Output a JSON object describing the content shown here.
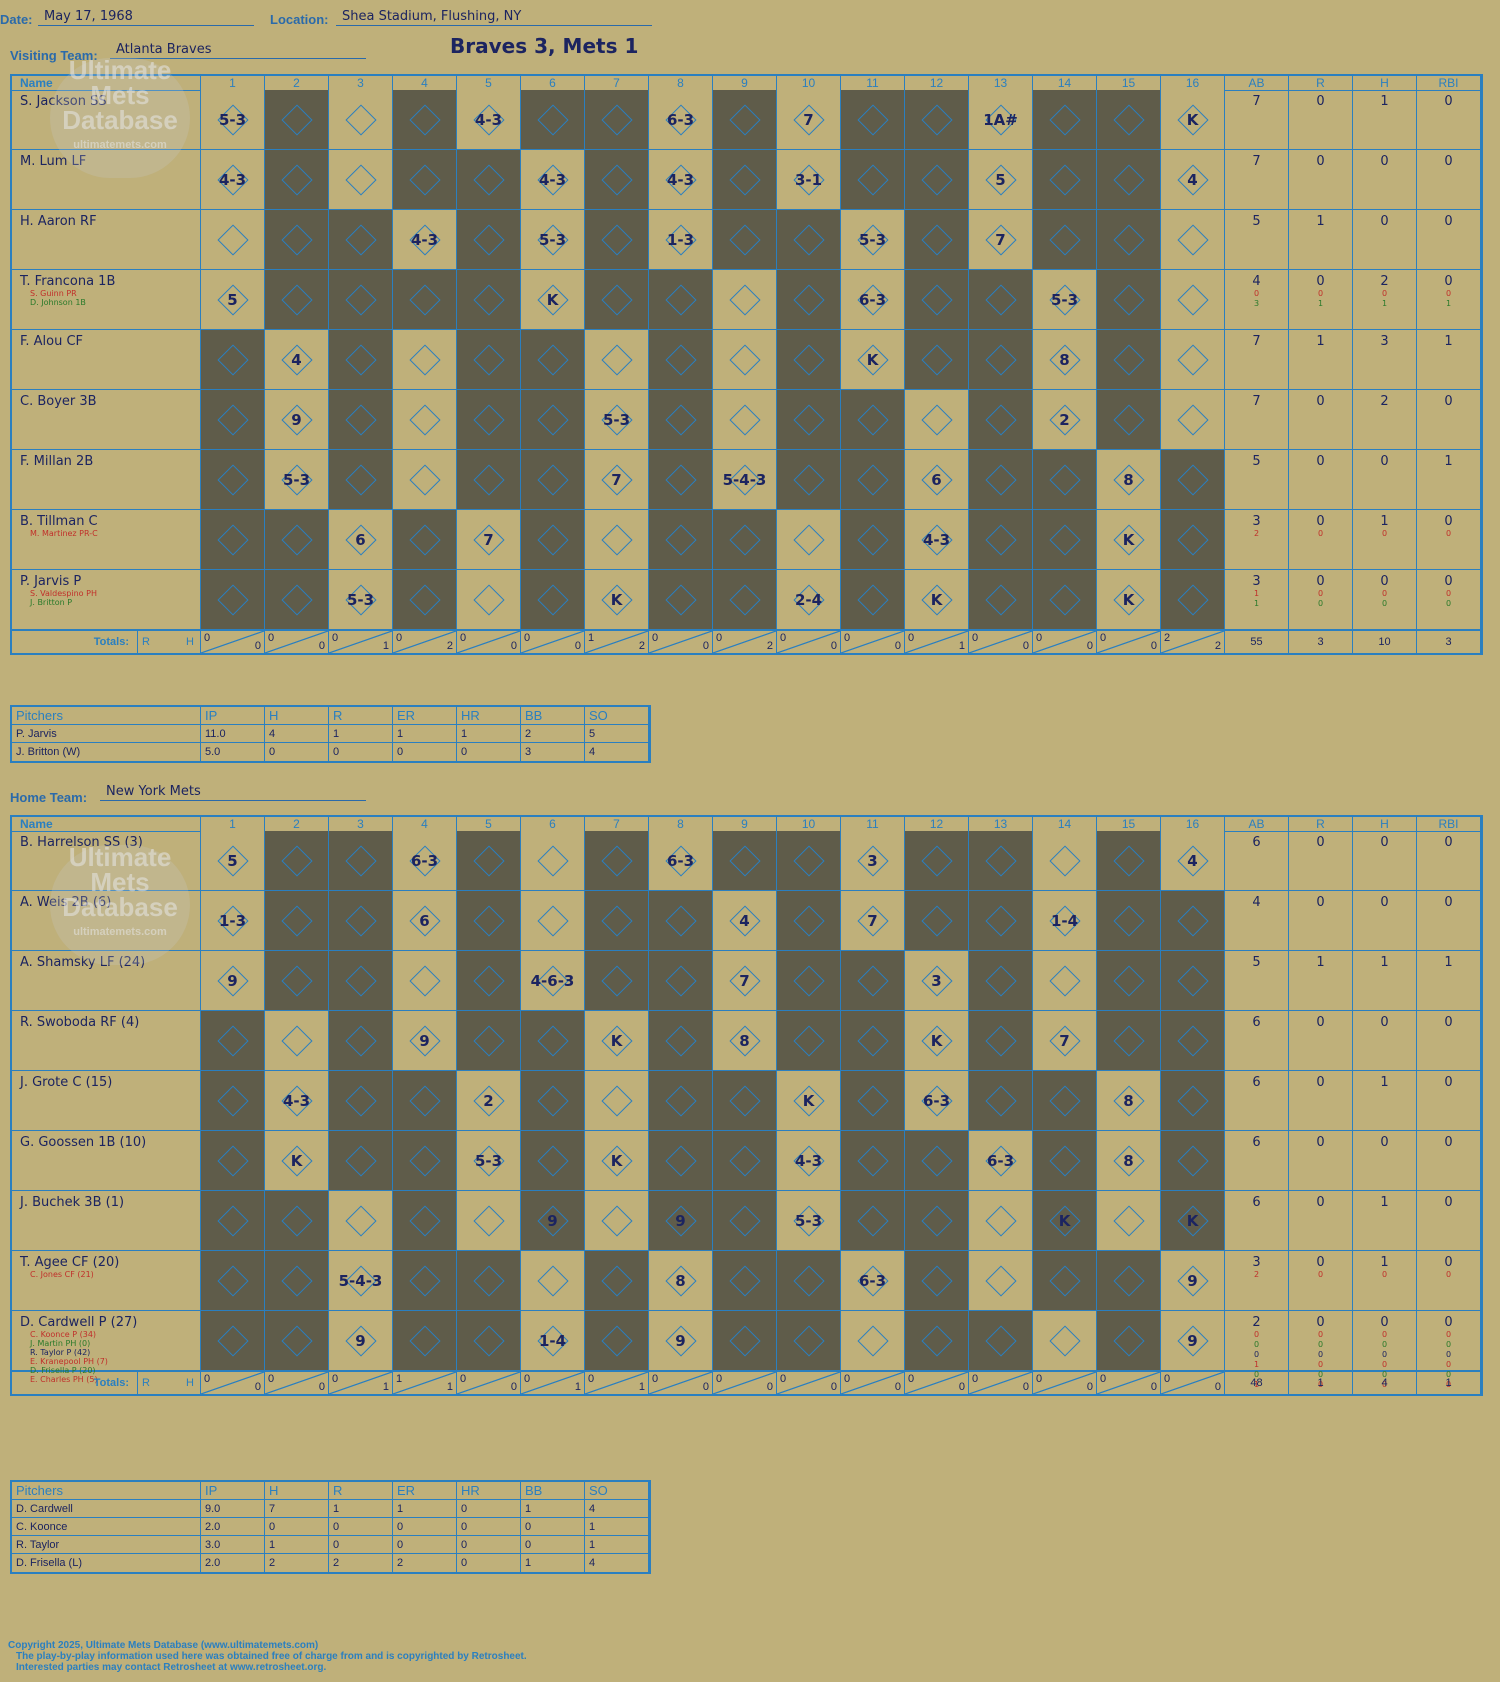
{
  "header": {
    "date_label": "Date:",
    "date": "May 17, 1968",
    "location_label": "Location:",
    "location": "Shea Stadium, Flushing, NY",
    "title": "Braves 3, Mets 1"
  },
  "visitors": {
    "label": "Visiting Team:",
    "team": "Atlanta Braves",
    "columns": [
      "Name",
      "1",
      "2",
      "3",
      "4",
      "5",
      "6",
      "7",
      "8",
      "9",
      "10",
      "11",
      "12",
      "13",
      "14",
      "15",
      "16",
      "AB",
      "R",
      "H",
      "RBI"
    ],
    "players": [
      {
        "name": "S. Jackson SS",
        "subs": [],
        "stats": {
          "AB": "7",
          "R": "0",
          "H": "1",
          "RBI": "0"
        },
        "sub_stats": []
      },
      {
        "name": "M. Lum LF",
        "subs": [],
        "stats": {
          "AB": "7",
          "R": "0",
          "H": "0",
          "RBI": "0"
        },
        "sub_stats": []
      },
      {
        "name": "H. Aaron RF",
        "subs": [],
        "stats": {
          "AB": "5",
          "R": "1",
          "H": "0",
          "RBI": "0"
        },
        "sub_stats": []
      },
      {
        "name": "T. Francona 1B",
        "subs": [
          {
            "t": "S. Guinn PR",
            "c": "r"
          },
          {
            "t": "D. Johnson 1B",
            "c": "g"
          }
        ],
        "stats": {
          "AB": "4",
          "R": "0",
          "H": "2",
          "RBI": "0"
        },
        "sub_stats": [
          {
            "c": "r",
            "v": [
              "0",
              "0",
              "0",
              "0"
            ]
          },
          {
            "c": "g",
            "v": [
              "3",
              "1",
              "1",
              "1"
            ]
          }
        ]
      },
      {
        "name": "F. Alou CF",
        "subs": [],
        "stats": {
          "AB": "7",
          "R": "1",
          "H": "3",
          "RBI": "1"
        },
        "sub_stats": []
      },
      {
        "name": "C. Boyer 3B",
        "subs": [],
        "stats": {
          "AB": "7",
          "R": "0",
          "H": "2",
          "RBI": "0"
        },
        "sub_stats": []
      },
      {
        "name": "F. Millan 2B",
        "subs": [],
        "stats": {
          "AB": "5",
          "R": "0",
          "H": "0",
          "RBI": "1"
        },
        "sub_stats": []
      },
      {
        "name": "B. Tillman C",
        "subs": [
          {
            "t": "M. Martinez PR-C",
            "c": "r"
          }
        ],
        "stats": {
          "AB": "3",
          "R": "0",
          "H": "1",
          "RBI": "0"
        },
        "sub_stats": [
          {
            "c": "r",
            "v": [
              "2",
              "0",
              "0",
              "0"
            ]
          }
        ]
      },
      {
        "name": "P. Jarvis P",
        "subs": [
          {
            "t": "S. Valdespino PH",
            "c": "r"
          },
          {
            "t": "J. Britton P",
            "c": "g"
          }
        ],
        "stats": {
          "AB": "3",
          "R": "0",
          "H": "0",
          "RBI": "0"
        },
        "sub_stats": [
          {
            "c": "r",
            "v": [
              "1",
              "0",
              "0",
              "0"
            ]
          },
          {
            "c": "g",
            "v": [
              "1",
              "0",
              "0",
              "0"
            ]
          }
        ]
      }
    ],
    "plays": [
      [
        "5-3",
        "",
        "",
        "",
        "4-3",
        "",
        "",
        "6-3",
        "",
        "7",
        "",
        "",
        "1A#",
        "",
        "",
        "K"
      ],
      [
        "4-3",
        "",
        "",
        "",
        "",
        "4-3",
        "",
        "4-3",
        "",
        "3-1",
        "",
        "",
        "5",
        "",
        "",
        "4"
      ],
      [
        "",
        "",
        "",
        "4-3",
        "",
        "5-3",
        "",
        "1-3",
        "",
        "",
        "5-3",
        "",
        "7",
        "",
        "",
        ""
      ],
      [
        "5",
        "",
        "",
        "",
        "",
        "K",
        "",
        "",
        "",
        "",
        "6-3",
        "",
        "",
        "5-3",
        "",
        ""
      ],
      [
        "",
        "4",
        "",
        "",
        "",
        "",
        "",
        "",
        "",
        "",
        "K",
        "",
        "",
        "8",
        "",
        ""
      ],
      [
        "",
        "9",
        "",
        "",
        "",
        "",
        "5-3",
        "",
        "",
        "",
        "",
        "",
        "",
        "2",
        "",
        ""
      ],
      [
        "",
        "5-3",
        "",
        "",
        "",
        "",
        "7",
        "",
        "5-4-3",
        "",
        "",
        "6",
        "",
        "",
        "8",
        ""
      ],
      [
        "",
        "",
        "6",
        "",
        "7",
        "",
        "",
        "",
        "",
        "",
        "",
        "4-3",
        "",
        "",
        "K",
        ""
      ],
      [
        "",
        "",
        "5-3",
        "",
        "",
        "",
        "K",
        "",
        "",
        "2-4",
        "",
        "K",
        "",
        "",
        "K",
        ""
      ]
    ],
    "cell_pattern": [
      "LDLDLDDLDLDDLDDL",
      "LDLDDLDLDLDDLDDL",
      "LDDLDLDLDDLDLDDL",
      "LDDDDLDDLDLDDLDL",
      "DLDLDDLDLDLDDLDL",
      "DLDLDDLDLDDLDLDL",
      "DLDLDDLDLDDLDDLD",
      "DDLDLDLDDLDLDDLD",
      "DDLDLDLDDLDLDDLD"
    ],
    "totals": {
      "label": "Totals:",
      "r_label": "R",
      "h_label": "H",
      "innings": [
        [
          "0",
          "0"
        ],
        [
          "0",
          "0"
        ],
        [
          "0",
          "1"
        ],
        [
          "0",
          "2"
        ],
        [
          "0",
          "0"
        ],
        [
          "0",
          "0"
        ],
        [
          "1",
          "2"
        ],
        [
          "0",
          "0"
        ],
        [
          "0",
          "2"
        ],
        [
          "0",
          "0"
        ],
        [
          "0",
          "0"
        ],
        [
          "0",
          "1"
        ],
        [
          "0",
          "0"
        ],
        [
          "0",
          "0"
        ],
        [
          "0",
          "0"
        ],
        [
          "2",
          "2"
        ]
      ],
      "stats": [
        "55",
        "3",
        "10",
        "3"
      ]
    }
  },
  "visitor_pitchers": {
    "columns": [
      "Pitchers",
      "IP",
      "H",
      "R",
      "ER",
      "HR",
      "BB",
      "SO"
    ],
    "rows": [
      [
        "P. Jarvis",
        "11.0",
        "4",
        "1",
        "1",
        "1",
        "2",
        "5"
      ],
      [
        "J. Britton (W)",
        "5.0",
        "0",
        "0",
        "0",
        "0",
        "3",
        "4"
      ]
    ]
  },
  "home": {
    "label": "Home Team:",
    "team": "New York Mets",
    "players": [
      {
        "name": "B. Harrelson SS (3)",
        "subs": [],
        "stats": {
          "AB": "6",
          "R": "0",
          "H": "0",
          "RBI": "0"
        },
        "sub_stats": []
      },
      {
        "name": "A. Weis 2B (6)",
        "subs": [],
        "stats": {
          "AB": "4",
          "R": "0",
          "H": "0",
          "RBI": "0"
        },
        "sub_stats": []
      },
      {
        "name": "A. Shamsky LF (24)",
        "subs": [],
        "stats": {
          "AB": "5",
          "R": "1",
          "H": "1",
          "RBI": "1"
        },
        "sub_stats": []
      },
      {
        "name": "R. Swoboda RF (4)",
        "subs": [],
        "stats": {
          "AB": "6",
          "R": "0",
          "H": "0",
          "RBI": "0"
        },
        "sub_stats": []
      },
      {
        "name": "J. Grote C (15)",
        "subs": [],
        "stats": {
          "AB": "6",
          "R": "0",
          "H": "1",
          "RBI": "0"
        },
        "sub_stats": []
      },
      {
        "name": "G. Goossen 1B (10)",
        "subs": [],
        "stats": {
          "AB": "6",
          "R": "0",
          "H": "0",
          "RBI": "0"
        },
        "sub_stats": []
      },
      {
        "name": "J. Buchek 3B (1)",
        "subs": [],
        "stats": {
          "AB": "6",
          "R": "0",
          "H": "1",
          "RBI": "0"
        },
        "sub_stats": []
      },
      {
        "name": "T. Agee CF (20)",
        "subs": [
          {
            "t": "C. Jones CF (21)",
            "c": "r"
          }
        ],
        "stats": {
          "AB": "3",
          "R": "0",
          "H": "1",
          "RBI": "0"
        },
        "sub_stats": [
          {
            "c": "r",
            "v": [
              "2",
              "0",
              "0",
              "0"
            ]
          }
        ]
      },
      {
        "name": "D. Cardwell P (27)",
        "subs": [
          {
            "t": "C. Koonce P (34)",
            "c": "r"
          },
          {
            "t": "J. Martin PH (0)",
            "c": "g"
          },
          {
            "t": "R. Taylor P (42)",
            "c": ""
          },
          {
            "t": "E. Kranepool PH (7)",
            "c": "r"
          },
          {
            "t": "D. Frisella P (20)",
            "c": "g"
          },
          {
            "t": "E. Charles PH (5)",
            "c": "r"
          }
        ],
        "stats": {
          "AB": "2",
          "R": "0",
          "H": "0",
          "RBI": "0"
        },
        "sub_stats": [
          {
            "c": "r",
            "v": [
              "0",
              "0",
              "0",
              "0"
            ]
          },
          {
            "c": "g",
            "v": [
              "0",
              "0",
              "0",
              "0"
            ]
          },
          {
            "c": "",
            "v": [
              "0",
              "0",
              "0",
              "0"
            ]
          },
          {
            "c": "r",
            "v": [
              "1",
              "0",
              "0",
              "0"
            ]
          },
          {
            "c": "g",
            "v": [
              "0",
              "0",
              "0",
              "0"
            ]
          },
          {
            "c": "r",
            "v": [
              "1",
              "0",
              "0",
              "0"
            ]
          }
        ]
      }
    ],
    "plays": [
      [
        "5",
        "",
        "",
        "6-3",
        "",
        "",
        "",
        "6-3",
        "",
        "",
        "3",
        "",
        "",
        "",
        "",
        "4"
      ],
      [
        "1-3",
        "",
        "",
        "6",
        "",
        "",
        "",
        "",
        "4",
        "",
        "7",
        "",
        "",
        "1-4",
        "",
        ""
      ],
      [
        "9",
        "",
        "",
        "",
        "",
        "4-6-3",
        "",
        "",
        "7",
        "",
        "",
        "3",
        "",
        "",
        "",
        ""
      ],
      [
        "",
        "",
        "",
        "9",
        "",
        "",
        "K",
        "",
        "8",
        "",
        "",
        "K",
        "",
        "7",
        "",
        ""
      ],
      [
        "",
        "4-3",
        "",
        "",
        "2",
        "",
        "",
        "",
        "",
        "K",
        "",
        "6-3",
        "",
        "",
        "8",
        ""
      ],
      [
        "",
        "K",
        "",
        "",
        "5-3",
        "",
        "K",
        "",
        "",
        "4-3",
        "",
        "",
        "6-3",
        "",
        "8",
        ""
      ],
      [
        "",
        "",
        "",
        "",
        "",
        "9",
        "",
        "9",
        "",
        "5-3",
        "",
        "",
        "",
        "K",
        "",
        "K"
      ],
      [
        "",
        "",
        "5-4-3",
        "",
        "",
        "",
        "",
        "8",
        "",
        "",
        "6-3",
        "",
        "",
        "",
        "",
        "9"
      ],
      [
        "",
        "",
        "9",
        "",
        "",
        "1-4",
        "",
        "9",
        "",
        "",
        "",
        "",
        "",
        "",
        "",
        "9"
      ]
    ],
    "cell_pattern": [
      "LDDLDLDLDDLDDLDL",
      "LDDLDLDDLDLDDLDD",
      "LDDLDLDDLDDLDLDD",
      "DLDLDDLDLDDLDLDD",
      "DLDDLDLDDLDLDDLD",
      "DLDDLDLDDLDDLDLD",
      "DDLDLDLDDLDDLDLD",
      "DDLDDLDLDDLDLDDL",
      "DDLDDLDLDDLDDLDL"
    ],
    "totals": {
      "label": "Totals:",
      "r_label": "R",
      "h_label": "H",
      "innings": [
        [
          "0",
          "0"
        ],
        [
          "0",
          "0"
        ],
        [
          "0",
          "1"
        ],
        [
          "1",
          "1"
        ],
        [
          "0",
          "0"
        ],
        [
          "0",
          "1"
        ],
        [
          "0",
          "1"
        ],
        [
          "0",
          "0"
        ],
        [
          "0",
          "0"
        ],
        [
          "0",
          "0"
        ],
        [
          "0",
          "0"
        ],
        [
          "0",
          "0"
        ],
        [
          "0",
          "0"
        ],
        [
          "0",
          "0"
        ],
        [
          "0",
          "0"
        ],
        [
          "0",
          "0"
        ]
      ],
      "stats": [
        "48",
        "1",
        "4",
        "1"
      ]
    }
  },
  "home_pitchers": {
    "columns": [
      "Pitchers",
      "IP",
      "H",
      "R",
      "ER",
      "HR",
      "BB",
      "SO"
    ],
    "rows": [
      [
        "D. Cardwell",
        "9.0",
        "7",
        "1",
        "1",
        "0",
        "1",
        "4"
      ],
      [
        "C. Koonce",
        "2.0",
        "0",
        "0",
        "0",
        "0",
        "0",
        "1"
      ],
      [
        "R. Taylor",
        "3.0",
        "1",
        "0",
        "0",
        "0",
        "0",
        "1"
      ],
      [
        "D. Frisella (L)",
        "2.0",
        "2",
        "2",
        "2",
        "0",
        "1",
        "4"
      ]
    ]
  },
  "logo": {
    "line1": "Ultimate",
    "line2": "Mets",
    "line3": "Database",
    "url": "ultimatemets.com"
  },
  "footer": {
    "line1": "Copyright 2025, Ultimate Mets Database (www.ultimatemets.com)",
    "line2": "The play-by-play information used here was obtained free of charge from and is copyrighted by Retrosheet.",
    "line3": "Interested parties may contact Retrosheet at www.retrosheet.org."
  },
  "colors": {
    "paper": "#bfb07a",
    "dark_cell": "#5f5c4a",
    "grid": "#2a7fc0",
    "ink": "#1c2460",
    "red": "#c0302a",
    "green": "#1d7a2e"
  }
}
